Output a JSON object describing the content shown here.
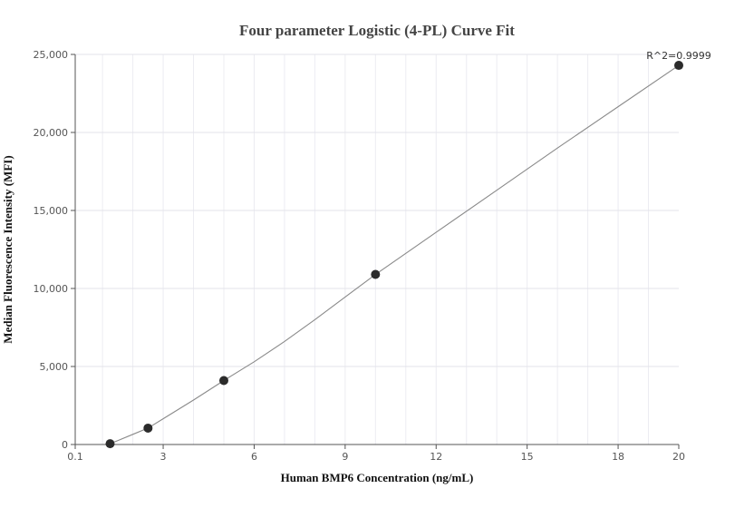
{
  "chart_data": {
    "type": "scatter",
    "title": "Four parameter Logistic (4-PL) Curve Fit",
    "xlabel": "Human BMP6 Concentration (ng/mL)",
    "ylabel": "Median Fluorescence Intensity (MFI)",
    "xlim": [
      0.1,
      20
    ],
    "ylim": [
      0,
      25000
    ],
    "x_ticks": [
      0.1,
      3,
      6,
      9,
      12,
      15,
      18,
      20
    ],
    "x_tick_labels": [
      "0.1",
      "3",
      "6",
      "9",
      "12",
      "15",
      "18",
      "20"
    ],
    "y_ticks": [
      0,
      5000,
      10000,
      15000,
      20000,
      25000
    ],
    "y_tick_labels": [
      "0",
      "5,000",
      "10,000",
      "15,000",
      "20,000",
      "25,000"
    ],
    "grid": true,
    "points": {
      "x": [
        1.25,
        2.5,
        5,
        10,
        20
      ],
      "y": [
        50,
        1050,
        4100,
        10900,
        24300
      ]
    },
    "fit_curve": {
      "x": [
        1.25,
        1.5,
        2,
        2.5,
        3,
        4,
        5,
        6,
        7,
        8,
        9,
        10,
        12,
        14,
        16,
        18,
        20
      ],
      "y": [
        50,
        250,
        650,
        1050,
        1650,
        2850,
        4100,
        5300,
        6600,
        8000,
        9450,
        10900,
        13600,
        16300,
        19000,
        21650,
        24300
      ]
    },
    "annotation": "R^2=0.9999",
    "colors": {
      "points": "#2b2b2b",
      "curve": "#8a8a8a",
      "grid": "#ececf2",
      "axis": "#555555"
    }
  }
}
